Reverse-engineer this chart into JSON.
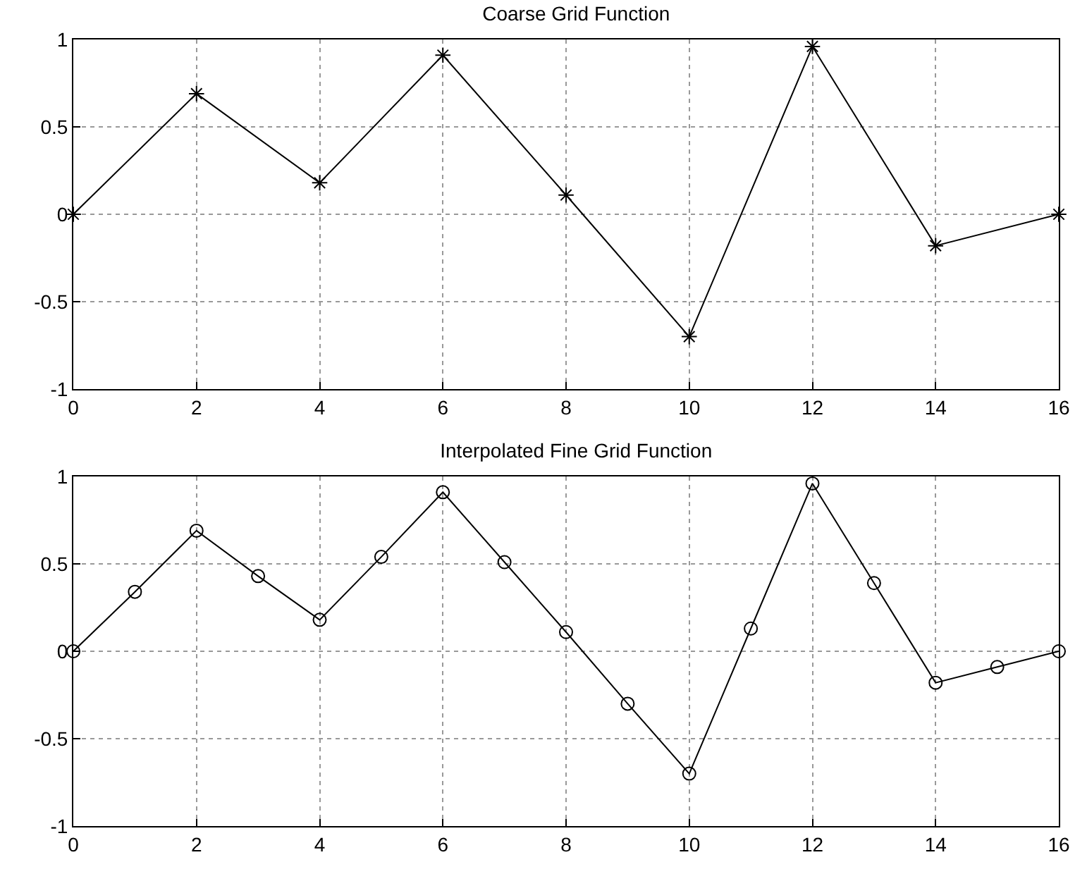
{
  "chart_data": [
    {
      "type": "line",
      "title": "Coarse Grid Function",
      "x": [
        0,
        2,
        4,
        6,
        8,
        10,
        12,
        14,
        16
      ],
      "values": [
        0,
        0.69,
        0.18,
        0.91,
        0.11,
        -0.7,
        0.96,
        -0.18,
        0
      ],
      "color": "#000000",
      "marker": "cross",
      "line_style": "solid",
      "grid": true,
      "legend": false,
      "xlim": [
        0,
        16
      ],
      "xticks": [
        0,
        2,
        4,
        6,
        8,
        10,
        12,
        14,
        16
      ],
      "ylim": [
        -1,
        1
      ],
      "yticks": [
        -1,
        -0.5,
        0,
        0.5,
        1
      ]
    },
    {
      "type": "line",
      "title": "Interpolated Fine Grid Function",
      "x": [
        0,
        1,
        2,
        3,
        4,
        5,
        6,
        7,
        8,
        9,
        10,
        11,
        12,
        13,
        14,
        15,
        16
      ],
      "values": [
        0,
        0.34,
        0.69,
        0.43,
        0.18,
        0.54,
        0.91,
        0.51,
        0.11,
        -0.3,
        -0.7,
        0.13,
        0.96,
        0.39,
        -0.18,
        -0.09,
        0
      ],
      "color": "#000000",
      "marker": "circle",
      "line_style": "solid",
      "grid": true,
      "legend": false,
      "xlim": [
        0,
        16
      ],
      "xticks": [
        0,
        2,
        4,
        6,
        8,
        10,
        12,
        14,
        16
      ],
      "ylim": [
        -1,
        1
      ],
      "yticks": [
        -1,
        -0.5,
        0,
        0.5,
        1
      ]
    }
  ]
}
